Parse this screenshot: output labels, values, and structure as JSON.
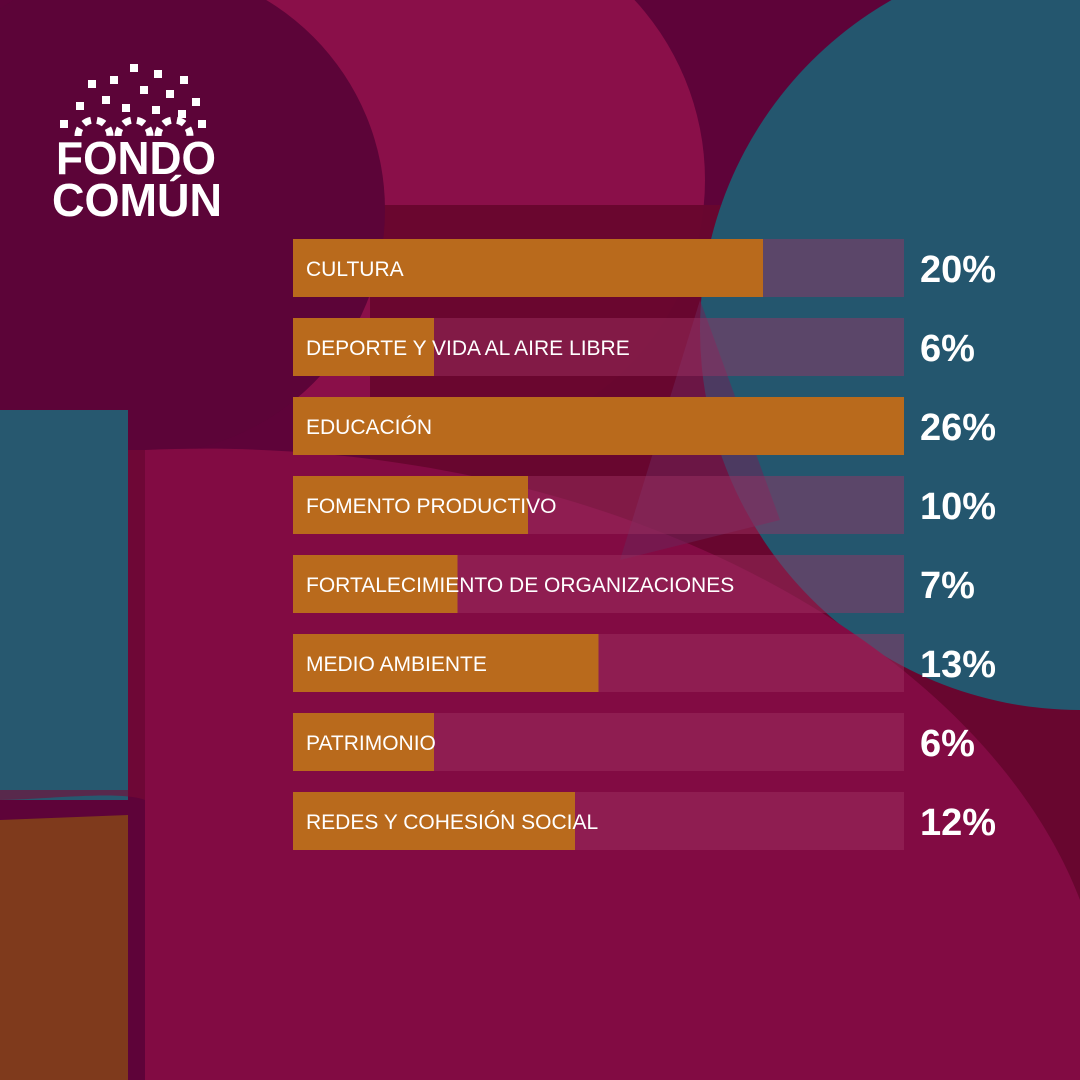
{
  "brand": {
    "name": "FONDO COMÚN",
    "line1": "FONDO",
    "line2": "COMÚN"
  },
  "colors": {
    "background": "#5e0339",
    "bar_fill": "#b96a1c",
    "bar_track": "rgba(160, 50, 100, 0.45)",
    "text": "#ffffff"
  },
  "chart_data": {
    "type": "bar",
    "orientation": "horizontal",
    "categories": [
      "CULTURA",
      "DEPORTE Y VIDA AL AIRE LIBRE",
      "EDUCACIÓN",
      "FOMENTO PRODUCTIVO",
      "FORTALECIMIENTO DE ORGANIZACIONES",
      "MEDIO AMBIENTE",
      "PATRIMONIO",
      "REDES Y COHESIÓN SOCIAL"
    ],
    "values": [
      20,
      6,
      26,
      10,
      7,
      13,
      6,
      12
    ],
    "value_labels": [
      "20%",
      "6%",
      "26%",
      "10%",
      "7%",
      "13%",
      "6%",
      "12%"
    ],
    "xlim": [
      0,
      26
    ],
    "title": "",
    "xlabel": "",
    "ylabel": "",
    "grid": false,
    "legend": "none"
  }
}
